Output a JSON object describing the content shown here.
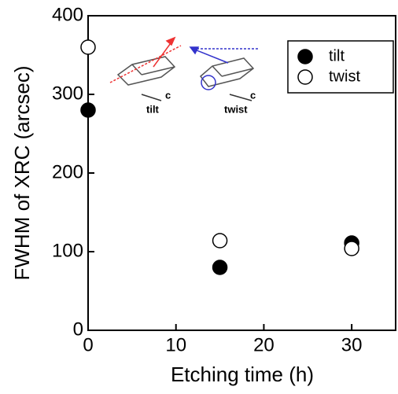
{
  "chart_data": {
    "type": "scatter",
    "x_label": "Etching time (h)",
    "y_label": "FWHM of XRC (arcsec)",
    "xlim": [
      0,
      35
    ],
    "xticks": [
      0,
      10,
      20,
      30
    ],
    "ylim": [
      0,
      400
    ],
    "yticks": [
      0,
      100,
      200,
      300,
      400
    ],
    "legend": "upper right",
    "annotations": [
      "c",
      "tilt",
      "c",
      "twist"
    ],
    "series": [
      {
        "name": "tilt",
        "color": "#000000",
        "filled": true,
        "x": [
          0,
          15,
          30
        ],
        "values": [
          280,
          80,
          111
        ]
      },
      {
        "name": "twist",
        "color": "#000000",
        "filled": false,
        "x": [
          0,
          15,
          30
        ],
        "values": [
          360,
          114,
          104
        ]
      }
    ]
  }
}
